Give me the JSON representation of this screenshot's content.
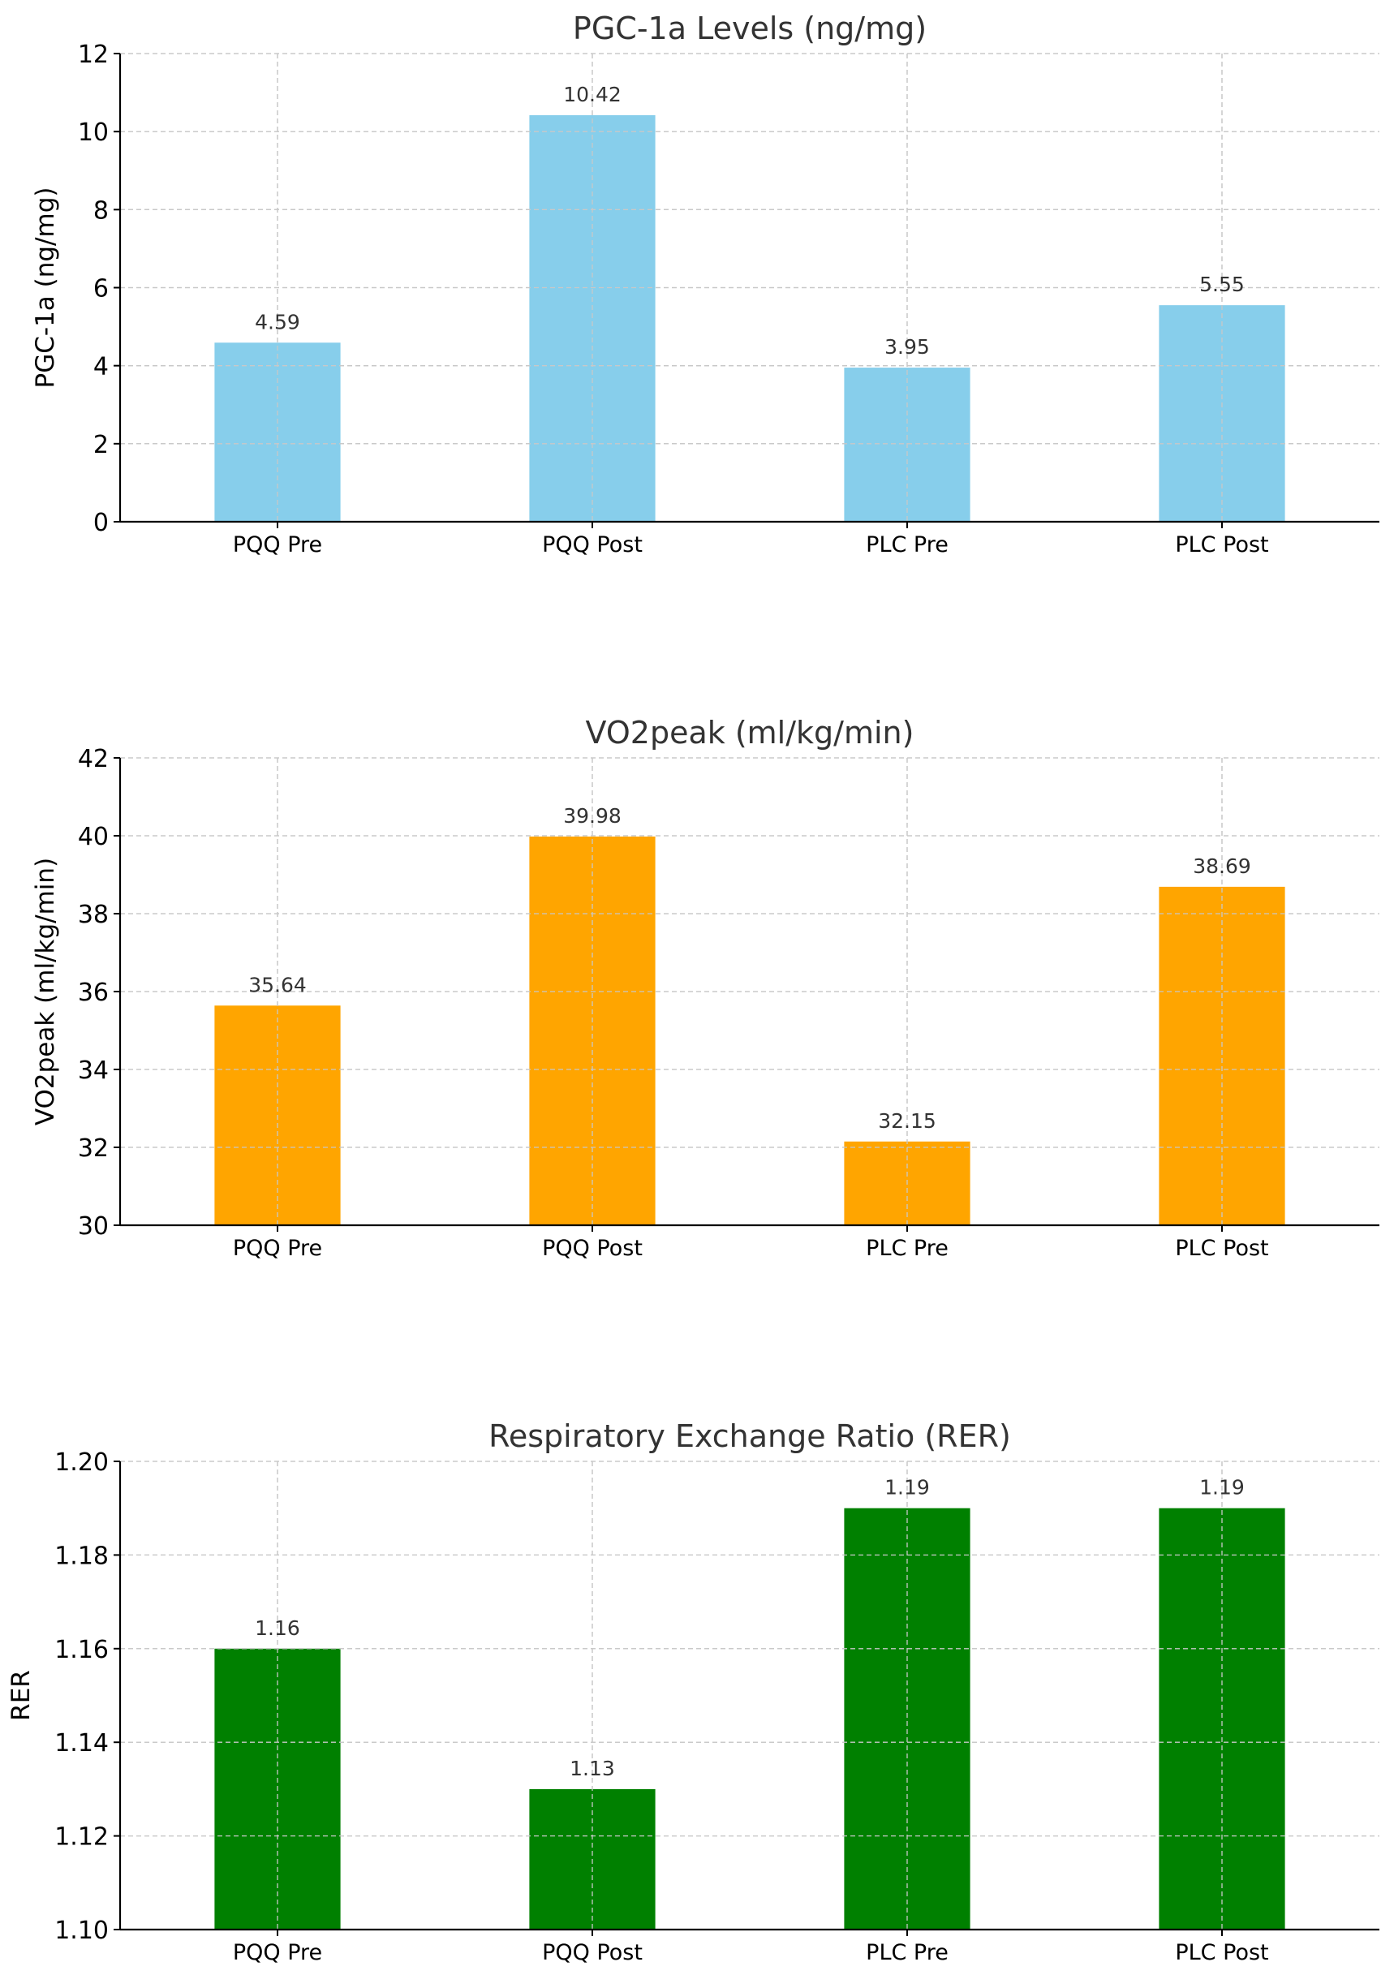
{
  "chart_data": [
    {
      "type": "bar",
      "title": "PGC-1a Levels (ng/mg)",
      "xlabel": "",
      "ylabel": "PGC-1a (ng/mg)",
      "categories": [
        "PQQ Pre",
        "PQQ Post",
        "PLC Pre",
        "PLC Post"
      ],
      "values": [
        4.59,
        10.42,
        3.95,
        5.55
      ],
      "value_labels": [
        "4.59",
        "10.42",
        "3.95",
        "5.55"
      ],
      "ylim": [
        0,
        12
      ],
      "yticks": [
        0,
        2,
        4,
        6,
        8,
        10,
        12
      ],
      "ytick_labels": [
        "0",
        "2",
        "4",
        "6",
        "8",
        "10",
        "12"
      ],
      "color": "#87ceeb",
      "grid": true,
      "legend": "none"
    },
    {
      "type": "bar",
      "title": "VO2peak (ml/kg/min)",
      "xlabel": "",
      "ylabel": "VO2peak (ml/kg/min)",
      "categories": [
        "PQQ Pre",
        "PQQ Post",
        "PLC Pre",
        "PLC Post"
      ],
      "values": [
        35.64,
        39.98,
        32.15,
        38.69
      ],
      "value_labels": [
        "35.64",
        "39.98",
        "32.15",
        "38.69"
      ],
      "ylim": [
        30,
        42
      ],
      "yticks": [
        30,
        32,
        34,
        36,
        38,
        40,
        42
      ],
      "ytick_labels": [
        "30",
        "32",
        "34",
        "36",
        "38",
        "40",
        "42"
      ],
      "color": "#ffa500",
      "grid": true,
      "legend": "none"
    },
    {
      "type": "bar",
      "title": "Respiratory Exchange Ratio (RER)",
      "xlabel": "",
      "ylabel": "RER",
      "categories": [
        "PQQ Pre",
        "PQQ Post",
        "PLC Pre",
        "PLC Post"
      ],
      "values": [
        1.16,
        1.13,
        1.19,
        1.19
      ],
      "value_labels": [
        "1.16",
        "1.13",
        "1.19",
        "1.19"
      ],
      "ylim": [
        1.1,
        1.2
      ],
      "yticks": [
        1.1,
        1.12,
        1.14,
        1.16,
        1.18,
        1.2
      ],
      "ytick_labels": [
        "1.10",
        "1.12",
        "1.14",
        "1.16",
        "1.18",
        "1.20"
      ],
      "color": "#008000",
      "grid": true,
      "legend": "none"
    }
  ]
}
